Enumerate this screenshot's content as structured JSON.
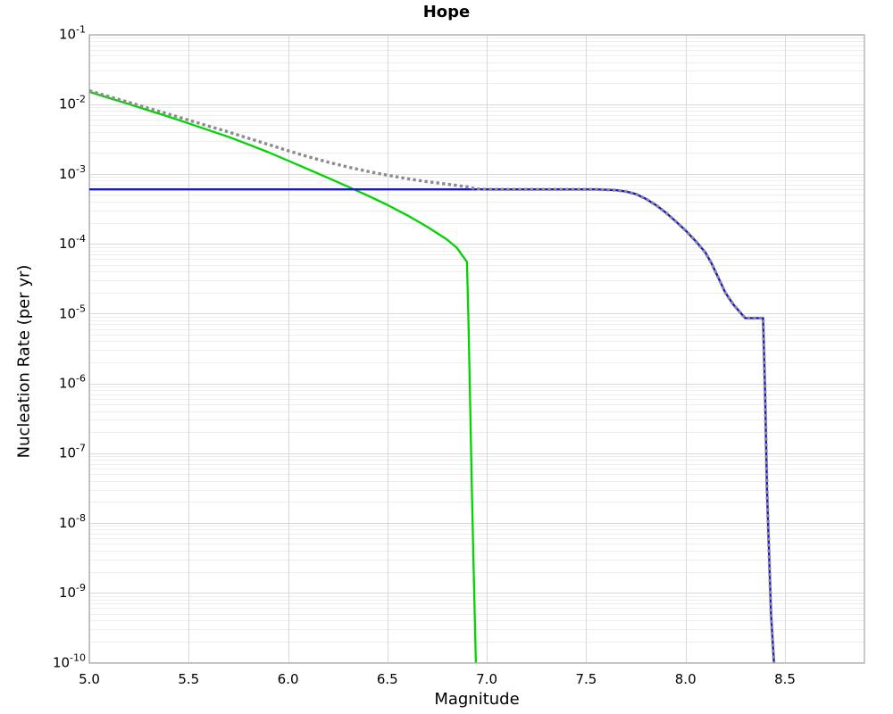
{
  "chart_data": {
    "type": "line",
    "title": "Hope",
    "xlabel": "Magnitude",
    "ylabel": "Nucleation Rate (per yr)",
    "x_axis": {
      "min": 5.0,
      "max": 8.9,
      "scale": "linear",
      "ticks": [
        {
          "value": 5.0,
          "label": "5.0"
        },
        {
          "value": 5.5,
          "label": "5.5"
        },
        {
          "value": 6.0,
          "label": "6.0"
        },
        {
          "value": 6.5,
          "label": "6.5"
        },
        {
          "value": 7.0,
          "label": "7.0"
        },
        {
          "value": 7.5,
          "label": "7.5"
        },
        {
          "value": 8.0,
          "label": "8.0"
        },
        {
          "value": 8.5,
          "label": "8.5"
        }
      ]
    },
    "y_axis": {
      "min": 1e-10,
      "max": 0.1,
      "scale": "log",
      "ticks": [
        {
          "value": 0.1,
          "base": "10",
          "exponent": "-1"
        },
        {
          "value": 0.01,
          "base": "10",
          "exponent": "-2"
        },
        {
          "value": 0.001,
          "base": "10",
          "exponent": "-3"
        },
        {
          "value": 0.0001,
          "base": "10",
          "exponent": "-4"
        },
        {
          "value": 1e-05,
          "base": "10",
          "exponent": "-5"
        },
        {
          "value": 1e-06,
          "base": "10",
          "exponent": "-6"
        },
        {
          "value": 1e-07,
          "base": "10",
          "exponent": "-7"
        },
        {
          "value": 1e-08,
          "base": "10",
          "exponent": "-8"
        },
        {
          "value": 1e-09,
          "base": "10",
          "exponent": "-9"
        },
        {
          "value": 1e-10,
          "base": "10",
          "exponent": "-10"
        }
      ]
    },
    "grid": {
      "major": true,
      "minor_y": true,
      "legend": "none"
    },
    "colors": {
      "frame": "#a6a6a6",
      "grid_major": "#d9d9d9",
      "grid_minor": "#eeeeee",
      "green_line": "#00d500",
      "blue_line": "#1414dc",
      "dotted_line": "#8c8c8c"
    },
    "series": [
      {
        "id": "green-solid",
        "style": "solid",
        "color_key": "green_line",
        "width": 2.3,
        "dash": null,
        "points": [
          [
            5.0,
            0.015
          ],
          [
            5.1,
            0.0122
          ],
          [
            5.2,
            0.01
          ],
          [
            5.3,
            0.0081
          ],
          [
            5.4,
            0.0066
          ],
          [
            5.5,
            0.0053
          ],
          [
            5.6,
            0.00425
          ],
          [
            5.7,
            0.0034
          ],
          [
            5.8,
            0.00265
          ],
          [
            5.9,
            0.00205
          ],
          [
            6.0,
            0.00155
          ],
          [
            6.1,
            0.00117
          ],
          [
            6.2,
            0.00088
          ],
          [
            6.3,
            0.00066
          ],
          [
            6.4,
            0.00049
          ],
          [
            6.5,
            0.00036
          ],
          [
            6.6,
            0.000255
          ],
          [
            6.7,
            0.000175
          ],
          [
            6.8,
            0.000115
          ],
          [
            6.85,
            8.7e-05
          ],
          [
            6.9,
            5.5e-05
          ],
          [
            6.907,
            1e-05
          ],
          [
            6.915,
            8e-07
          ],
          [
            6.925,
            3e-08
          ],
          [
            6.935,
            1.5e-09
          ],
          [
            6.945,
            1e-10
          ]
        ]
      },
      {
        "id": "blue-solid",
        "style": "solid",
        "color_key": "blue_line",
        "width": 2.4,
        "dash": null,
        "points": [
          [
            5.0,
            0.0006
          ],
          [
            7.55,
            0.0006
          ],
          [
            7.65,
            0.000585
          ],
          [
            7.7,
            0.00056
          ],
          [
            7.75,
            0.000515
          ],
          [
            7.8,
            0.00044
          ],
          [
            7.85,
            0.00036
          ],
          [
            7.9,
            0.00028
          ],
          [
            7.95,
            0.00021
          ],
          [
            8.0,
            0.000155
          ],
          [
            8.05,
            0.00011
          ],
          [
            8.1,
            7.5e-05
          ],
          [
            8.13,
            5.3e-05
          ],
          [
            8.16,
            3.5e-05
          ],
          [
            8.2,
            2e-05
          ],
          [
            8.24,
            1.35e-05
          ],
          [
            8.28,
            1e-05
          ],
          [
            8.3,
            8.6e-06
          ],
          [
            8.39,
            8.6e-06
          ],
          [
            8.4,
            8e-07
          ],
          [
            8.41,
            3e-08
          ],
          [
            8.43,
            5e-10
          ],
          [
            8.445,
            1e-10
          ]
        ]
      },
      {
        "id": "gray-dotted",
        "style": "dotted",
        "color_key": "dotted_line",
        "width": 3.4,
        "dash": "3.4 3.2",
        "points": [
          [
            5.0,
            0.0156
          ],
          [
            5.1,
            0.0128
          ],
          [
            5.2,
            0.0106
          ],
          [
            5.3,
            0.0087
          ],
          [
            5.4,
            0.0072
          ],
          [
            5.5,
            0.0059
          ],
          [
            5.6,
            0.00485
          ],
          [
            5.7,
            0.004
          ],
          [
            5.8,
            0.00325
          ],
          [
            5.9,
            0.00265
          ],
          [
            6.0,
            0.00215
          ],
          [
            6.1,
            0.00177
          ],
          [
            6.2,
            0.00148
          ],
          [
            6.3,
            0.00126
          ],
          [
            6.4,
            0.00109
          ],
          [
            6.5,
            0.00096
          ],
          [
            6.6,
            0.000855
          ],
          [
            6.7,
            0.000775
          ],
          [
            6.8,
            0.000715
          ],
          [
            6.9,
            0.000655
          ],
          [
            6.95,
            0.00061
          ],
          [
            7.0,
            0.000603
          ],
          [
            7.1,
            0.0006
          ],
          [
            7.55,
            0.0006
          ],
          [
            7.65,
            0.000585
          ],
          [
            7.7,
            0.00056
          ],
          [
            7.75,
            0.000515
          ],
          [
            7.8,
            0.00044
          ],
          [
            7.85,
            0.00036
          ],
          [
            7.9,
            0.00028
          ],
          [
            7.95,
            0.00021
          ],
          [
            8.0,
            0.000155
          ],
          [
            8.05,
            0.00011
          ],
          [
            8.1,
            7.5e-05
          ],
          [
            8.13,
            5.3e-05
          ],
          [
            8.16,
            3.5e-05
          ],
          [
            8.2,
            2e-05
          ],
          [
            8.24,
            1.35e-05
          ],
          [
            8.28,
            1e-05
          ],
          [
            8.3,
            8.6e-06
          ],
          [
            8.39,
            8.6e-06
          ],
          [
            8.4,
            8e-07
          ],
          [
            8.41,
            3e-08
          ],
          [
            8.43,
            5e-10
          ],
          [
            8.445,
            1e-10
          ]
        ]
      }
    ]
  }
}
